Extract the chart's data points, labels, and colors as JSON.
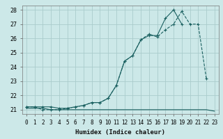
{
  "xlabel": "Humidex (Indice chaleur)",
  "xlim": [
    -0.5,
    23.5
  ],
  "ylim": [
    20.7,
    28.3
  ],
  "yticks": [
    21,
    22,
    23,
    24,
    25,
    26,
    27,
    28
  ],
  "xticks": [
    0,
    1,
    2,
    3,
    4,
    5,
    6,
    7,
    8,
    9,
    10,
    11,
    12,
    13,
    14,
    15,
    16,
    17,
    18,
    19,
    20,
    21,
    22,
    23
  ],
  "bg_color": "#cce8e8",
  "grid_color": "#aacccc",
  "line_color": "#1a6060",
  "line1_x": [
    0,
    1,
    2,
    3,
    4,
    5,
    6,
    7,
    8,
    9,
    10,
    11,
    12,
    13,
    14,
    15,
    16,
    17,
    18,
    19,
    20,
    21,
    22,
    23
  ],
  "line1_y": [
    21.1,
    21.1,
    21.1,
    21.0,
    21.0,
    21.0,
    21.0,
    21.0,
    21.0,
    21.0,
    21.0,
    21.0,
    21.0,
    21.0,
    21.0,
    21.0,
    21.0,
    21.0,
    21.0,
    21.0,
    21.0,
    21.0,
    21.0,
    20.9
  ],
  "line2_x": [
    0,
    1,
    2,
    3,
    4,
    5,
    6,
    7,
    8,
    9,
    10,
    11,
    12,
    13,
    14,
    15,
    16,
    17,
    18,
    19,
    20,
    21,
    22
  ],
  "line2_y": [
    21.2,
    21.2,
    21.0,
    21.0,
    21.0,
    21.1,
    21.2,
    21.3,
    21.5,
    21.5,
    21.8,
    22.7,
    24.4,
    24.8,
    25.9,
    26.3,
    26.1,
    26.6,
    27.0,
    27.9,
    27.0,
    27.0,
    23.2
  ],
  "line3_x": [
    0,
    1,
    2,
    3,
    4,
    5,
    6,
    7,
    8,
    9,
    10,
    11,
    12,
    13,
    14,
    15,
    16,
    17,
    18,
    19
  ],
  "line3_y": [
    21.2,
    21.2,
    21.2,
    21.2,
    21.1,
    21.1,
    21.2,
    21.3,
    21.5,
    21.5,
    21.8,
    22.7,
    24.4,
    24.8,
    25.9,
    26.2,
    26.2,
    27.4,
    28.0,
    27.0
  ]
}
